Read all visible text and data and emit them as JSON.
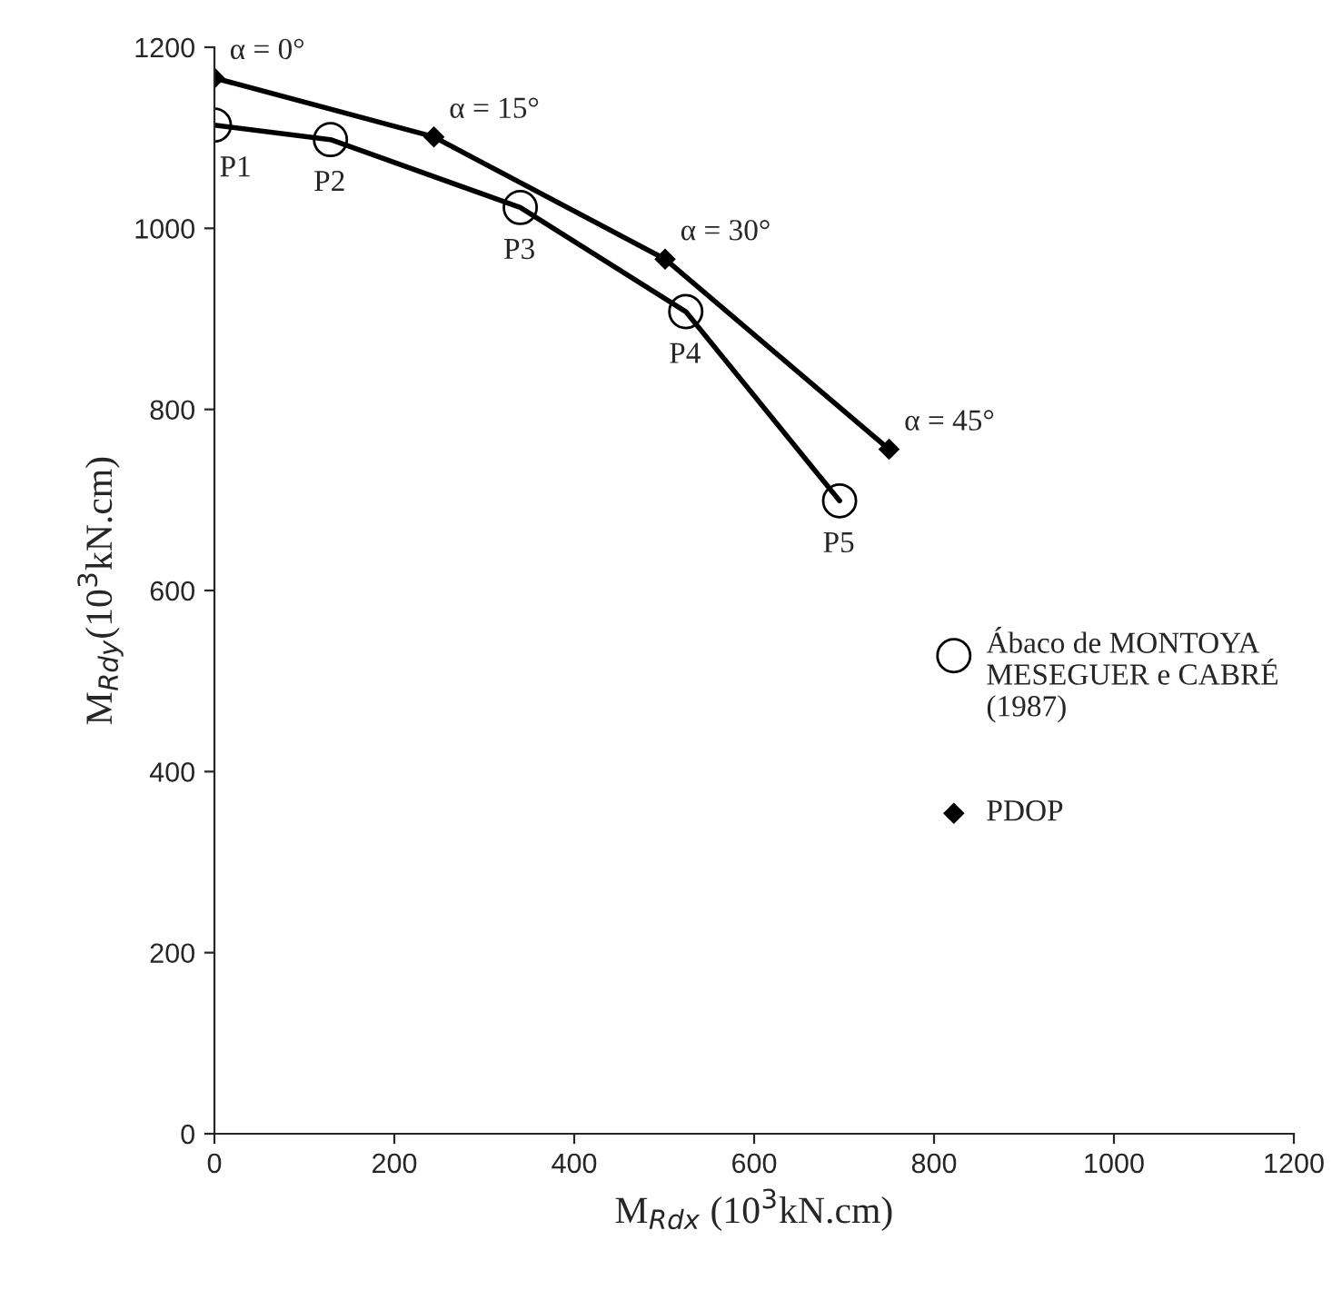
{
  "chart_data": {
    "type": "line",
    "xlabel": "M$_{Rdx}$ (10$^{3}$kN.cm)",
    "ylabel": "M$_{Rdy}$(10$^{3}$kN.cm)",
    "series": [
      {
        "name": "Ábaco de MONTOYA MESEGUER e CABRÉ (1987)",
        "color": "#000000",
        "marker": "circle",
        "x": [
          0,
          129,
          340,
          524,
          695
        ],
        "values": [
          1114,
          1098,
          1023,
          908,
          699
        ]
      },
      {
        "name": "PDOP",
        "color": "#000000",
        "marker": "diamond",
        "x": [
          0,
          244,
          501,
          750
        ],
        "values": [
          1166,
          1101,
          966,
          756
        ]
      }
    ],
    "annotations": [
      {
        "text": "α = 0°",
        "x": 0,
        "y": 1166
      },
      {
        "text": "α = 15°",
        "x": 244,
        "y": 1101
      },
      {
        "text": "α = 30°",
        "x": 501,
        "y": 966
      },
      {
        "text": "α = 45°",
        "x": 750,
        "y": 756
      },
      {
        "text": "P1",
        "x": 0,
        "y": 1114
      },
      {
        "text": "P2",
        "x": 129,
        "y": 1098
      },
      {
        "text": "P3",
        "x": 340,
        "y": 1023
      },
      {
        "text": "P4",
        "x": 524,
        "y": 908
      },
      {
        "text": "P5",
        "x": 695,
        "y": 699
      }
    ],
    "xlim": [
      0,
      1200
    ],
    "xticks": [
      0,
      200,
      400,
      600,
      800,
      1000,
      1200
    ],
    "ylim": [
      0,
      1200
    ],
    "yticks": [
      0,
      200,
      400,
      600,
      800,
      1000,
      1200
    ],
    "grid": false,
    "legend": "right",
    "line_style": "solid"
  }
}
